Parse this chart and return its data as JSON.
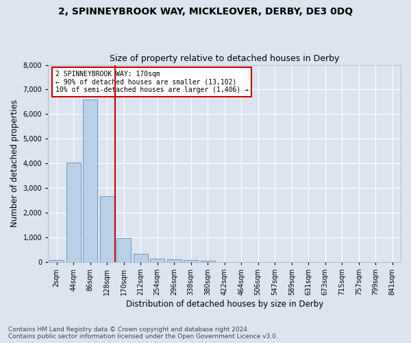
{
  "title": "2, SPINNEYBROOK WAY, MICKLEOVER, DERBY, DE3 0DQ",
  "subtitle": "Size of property relative to detached houses in Derby",
  "xlabel": "Distribution of detached houses by size in Derby",
  "ylabel": "Number of detached properties",
  "footer": "Contains HM Land Registry data © Crown copyright and database right 2024.\nContains public sector information licensed under the Open Government Licence v3.0.",
  "bar_labels": [
    "2sqm",
    "44sqm",
    "86sqm",
    "128sqm",
    "170sqm",
    "212sqm",
    "254sqm",
    "296sqm",
    "338sqm",
    "380sqm",
    "422sqm",
    "464sqm",
    "506sqm",
    "547sqm",
    "589sqm",
    "631sqm",
    "673sqm",
    "715sqm",
    "757sqm",
    "799sqm",
    "841sqm"
  ],
  "bar_values": [
    80,
    4020,
    6600,
    2650,
    950,
    330,
    140,
    110,
    70,
    55,
    0,
    0,
    0,
    0,
    0,
    0,
    0,
    0,
    0,
    0,
    0
  ],
  "bar_color": "#b8d0e8",
  "bar_edge_color": "#6090c0",
  "vline_color": "#cc0000",
  "annotation_text": "2 SPINNEYBROOK WAY: 170sqm\n← 90% of detached houses are smaller (13,102)\n10% of semi-detached houses are larger (1,406) →",
  "annotation_box_color": "#cc0000",
  "ylim": [
    0,
    8000
  ],
  "yticks": [
    0,
    1000,
    2000,
    3000,
    4000,
    5000,
    6000,
    7000,
    8000
  ],
  "bg_color": "#dce4f0",
  "plot_bg_color": "#dce4f0",
  "grid_color": "#ffffff",
  "title_fontsize": 10,
  "subtitle_fontsize": 9,
  "axis_label_fontsize": 8.5,
  "tick_fontsize": 7,
  "footer_fontsize": 6.5,
  "vline_bar_index": 4
}
